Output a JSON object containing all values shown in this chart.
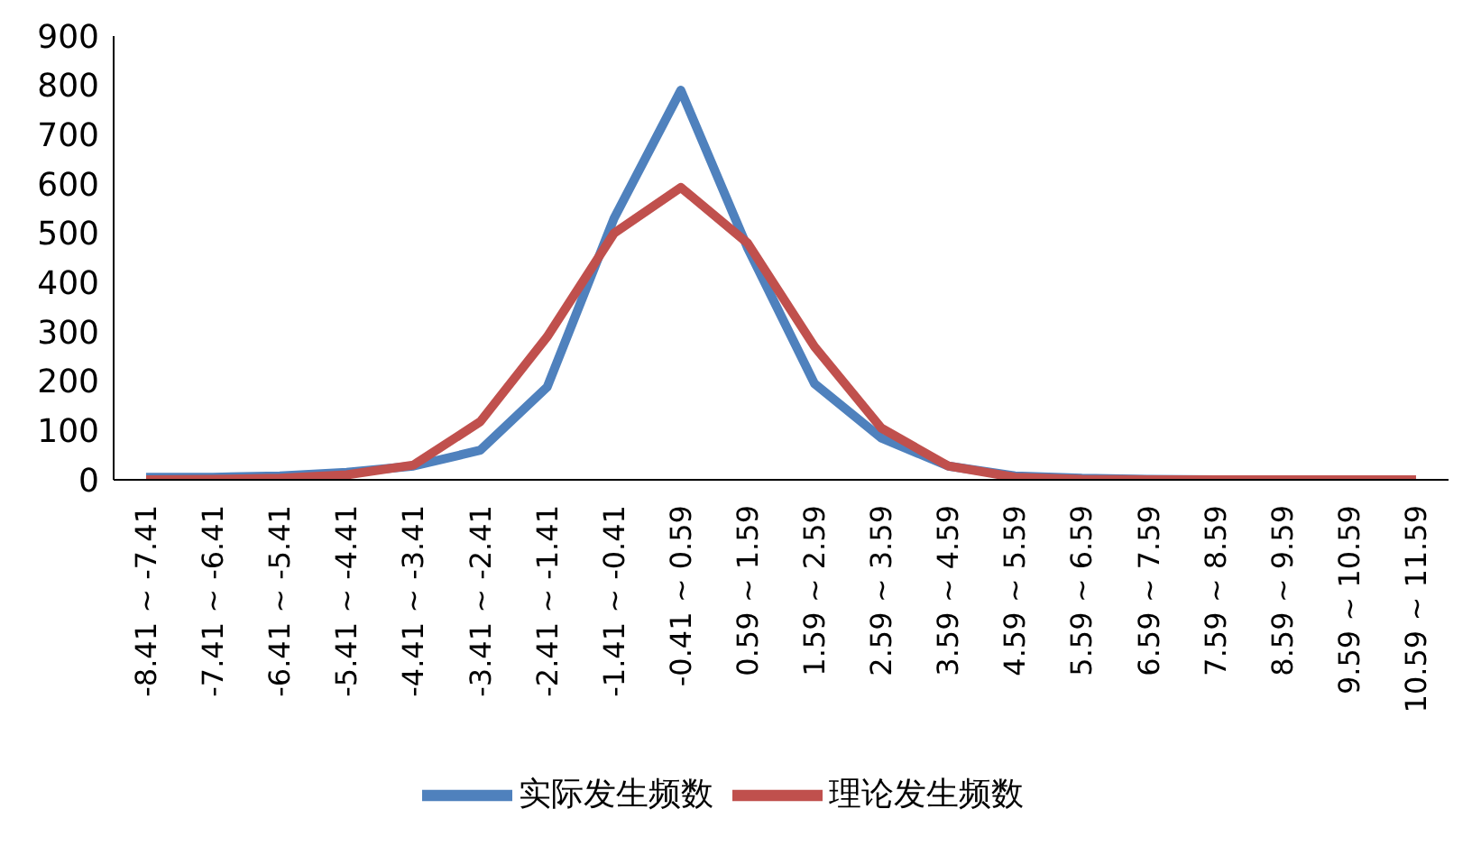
{
  "chart_data": {
    "type": "line",
    "categories": [
      "-8.41 ~ -7.41",
      "-7.41 ~ -6.41",
      "-6.41 ~ -5.41",
      "-5.41 ~ -4.41",
      "-4.41 ~ -3.41",
      "-3.41 ~ -2.41",
      "-2.41 ~ -1.41",
      "-1.41 ~ -0.41",
      "-0.41 ~ 0.59",
      "0.59 ~ 1.59",
      "1.59 ~ 2.59",
      "2.59 ~ 3.59",
      "3.59 ~ 4.59",
      "4.59 ~ 5.59",
      "5.59 ~ 6.59",
      "6.59 ~ 7.59",
      "7.59 ~ 8.59",
      "8.59 ~ 9.59",
      "9.59 ~ 10.59",
      "10.59 ~ 11.59"
    ],
    "series": [
      {
        "name": "实际发生频数",
        "color": "#4f81bd",
        "values": [
          5,
          5,
          8,
          15,
          28,
          60,
          188,
          530,
          790,
          470,
          195,
          85,
          28,
          8,
          3,
          1,
          0,
          null,
          null,
          null
        ]
      },
      {
        "name": "理论发生频数",
        "color": "#c0504d",
        "values": [
          0,
          1,
          3,
          10,
          30,
          118,
          290,
          500,
          593,
          480,
          270,
          105,
          28,
          5,
          1,
          0,
          0,
          0,
          0,
          0
        ]
      }
    ],
    "ylim": [
      0,
      900
    ],
    "yticks": [
      0,
      100,
      200,
      300,
      400,
      500,
      600,
      700,
      800,
      900
    ],
    "grid": false,
    "legend": "bottom",
    "marker": "none",
    "line_style": "solid"
  }
}
